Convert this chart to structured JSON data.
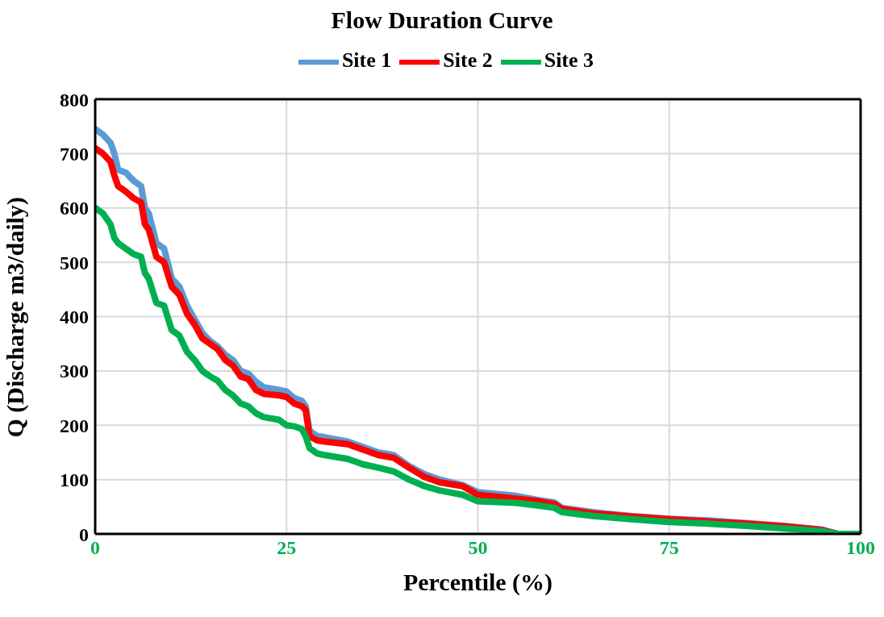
{
  "chart_data": {
    "type": "line",
    "title": "Flow Duration Curve",
    "xlabel": "Percentile (%)",
    "ylabel": "Q (Discharge m3/daily)",
    "x": [
      0,
      1,
      2,
      2.5,
      3,
      4,
      5,
      6,
      6.5,
      7,
      8,
      9,
      10,
      11,
      12,
      13,
      14,
      15,
      16,
      17,
      18,
      19,
      20,
      21,
      22,
      24,
      25,
      26,
      27,
      27.5,
      28,
      29,
      30,
      33,
      35,
      37,
      39,
      41,
      43,
      45,
      48,
      50,
      55,
      58,
      60,
      61,
      65,
      70,
      75,
      80,
      85,
      90,
      95,
      97,
      100
    ],
    "series": [
      {
        "name": "Site 1",
        "color": "#5b9bd5",
        "values": [
          745,
          735,
          720,
          700,
          670,
          665,
          650,
          640,
          600,
          590,
          535,
          525,
          470,
          455,
          420,
          395,
          370,
          355,
          345,
          330,
          320,
          300,
          295,
          280,
          270,
          265,
          262,
          250,
          245,
          235,
          190,
          180,
          178,
          170,
          160,
          150,
          145,
          125,
          110,
          100,
          90,
          77,
          70,
          62,
          58,
          48,
          40,
          33,
          28,
          25,
          20,
          15,
          8,
          0,
          0
        ]
      },
      {
        "name": "Site 2",
        "color": "#ff0000",
        "values": [
          710,
          700,
          685,
          660,
          640,
          630,
          618,
          610,
          570,
          560,
          510,
          500,
          455,
          440,
          405,
          385,
          360,
          350,
          340,
          320,
          310,
          290,
          285,
          265,
          258,
          255,
          252,
          240,
          235,
          228,
          180,
          172,
          170,
          165,
          155,
          145,
          140,
          122,
          105,
          95,
          88,
          72,
          65,
          60,
          55,
          46,
          38,
          32,
          27,
          23,
          19,
          14,
          7,
          0,
          0
        ]
      },
      {
        "name": "Site 3",
        "color": "#00b050",
        "values": [
          600,
          590,
          570,
          545,
          535,
          525,
          515,
          510,
          480,
          470,
          425,
          420,
          375,
          365,
          335,
          320,
          300,
          290,
          282,
          265,
          255,
          240,
          235,
          222,
          215,
          210,
          200,
          198,
          193,
          180,
          158,
          148,
          145,
          138,
          128,
          122,
          115,
          100,
          88,
          80,
          72,
          60,
          57,
          52,
          48,
          40,
          33,
          27,
          22,
          19,
          15,
          10,
          5,
          0,
          0
        ]
      }
    ],
    "xlim": [
      0,
      100
    ],
    "xticks": [
      0,
      25,
      50,
      75,
      100
    ],
    "ylim": [
      0,
      800
    ],
    "yticks": [
      0,
      100,
      200,
      300,
      400,
      500,
      600,
      700,
      800
    ],
    "grid": true,
    "legend": "top",
    "marker": "none",
    "line_style": "solid"
  }
}
